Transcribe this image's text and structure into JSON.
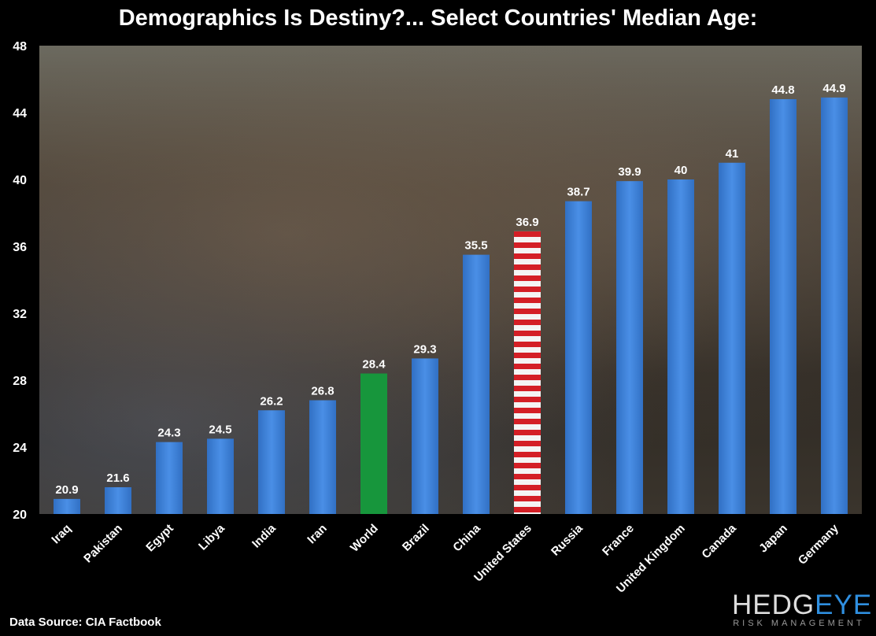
{
  "chart_data": {
    "type": "bar",
    "title": "Demographics Is Destiny?... Select Countries' Median Age:",
    "categories": [
      "Iraq",
      "Pakistan",
      "Egypt",
      "Libya",
      "India",
      "Iran",
      "World",
      "Brazil",
      "China",
      "United States",
      "Russia",
      "France",
      "United Kingdom",
      "Canada",
      "Japan",
      "Germany"
    ],
    "values": [
      20.9,
      21.6,
      24.3,
      24.5,
      26.2,
      26.8,
      28.4,
      29.3,
      35.5,
      36.9,
      38.7,
      39.9,
      40,
      41,
      44.8,
      44.9
    ],
    "value_labels": [
      "20.9",
      "21.6",
      "24.3",
      "24.5",
      "26.2",
      "26.8",
      "28.4",
      "29.3",
      "35.5",
      "36.9",
      "38.7",
      "39.9",
      "40",
      "41",
      "44.8",
      "44.9"
    ],
    "ylim": [
      20,
      48
    ],
    "yticks": [
      20,
      24,
      28,
      32,
      36,
      40,
      44,
      48
    ],
    "grid": false,
    "colors": {
      "default": "#3b7fd6",
      "World": "#17963c",
      "United States": "us-flag-stripes"
    },
    "background": "protest-crowd-photo"
  },
  "footer": {
    "source": "Data Source: CIA Factbook",
    "logo_main_a": "HEDG",
    "logo_main_b": "EYE",
    "logo_sub": "RISK MANAGEMENT"
  }
}
